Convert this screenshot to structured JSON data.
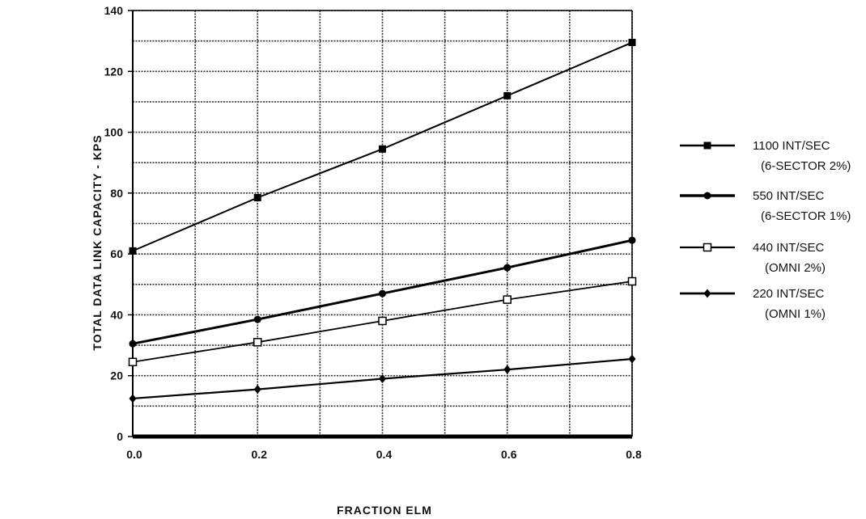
{
  "chart_data": {
    "type": "line",
    "title": "",
    "xlabel": "FRACTION ELM",
    "ylabel": "TOTAL DATA LINK CAPACITY - KPS",
    "xlim": [
      0,
      0.8
    ],
    "ylim": [
      0,
      140
    ],
    "xticks": [
      "0.0",
      "0.2",
      "0.4",
      "0.6",
      "0.8"
    ],
    "yticks": [
      "0",
      "20",
      "40",
      "60",
      "80",
      "100",
      "120",
      "140"
    ],
    "grid": true,
    "legend_position": "right",
    "x": [
      0.0,
      0.2,
      0.4,
      0.6,
      0.8
    ],
    "series": [
      {
        "name": "1100 INT/SEC",
        "note": "(6-SECTOR 2%)",
        "marker": "filled-square",
        "values": [
          61,
          78.5,
          94.5,
          112,
          129.5
        ]
      },
      {
        "name": "550 INT/SEC",
        "note": "(6-SECTOR 1%)",
        "marker": "filled-circle",
        "values": [
          30.5,
          38.5,
          47,
          55.5,
          64.5
        ]
      },
      {
        "name": "440 INT/SEC",
        "note": "(OMNI 2%)",
        "marker": "open-square",
        "values": [
          24.5,
          31,
          38,
          45,
          51
        ]
      },
      {
        "name": "220 INT/SEC",
        "note": "(OMNI 1%)",
        "marker": "filled-diamond",
        "values": [
          12.5,
          15.5,
          19,
          22,
          25.5
        ]
      }
    ]
  }
}
